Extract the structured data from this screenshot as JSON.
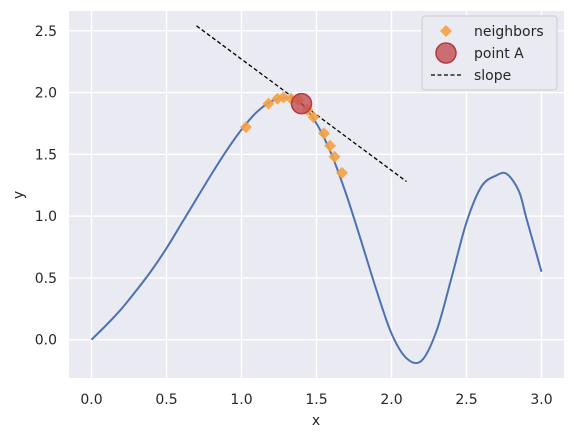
{
  "chart_data": {
    "type": "line",
    "xlabel": "x",
    "ylabel": "y",
    "xlim": [
      -0.15,
      3.15
    ],
    "ylim": [
      -0.31,
      2.66
    ],
    "xticks": [
      0.0,
      0.5,
      1.0,
      1.5,
      2.0,
      2.5,
      3.0
    ],
    "xtick_labels": [
      "0.0",
      "0.5",
      "1.0",
      "1.5",
      "2.0",
      "2.5",
      "3.0"
    ],
    "yticks": [
      0.0,
      0.5,
      1.0,
      1.5,
      2.0,
      2.5
    ],
    "ytick_labels": [
      "0.0",
      "0.5",
      "1.0",
      "1.5",
      "2.0",
      "2.5"
    ],
    "grid": true,
    "legend_position": "top-right",
    "series": [
      {
        "kind": "line",
        "color": "#4c72b0",
        "x": [
          0.0,
          0.1,
          0.2,
          0.3,
          0.4,
          0.5,
          0.6,
          0.7,
          0.8,
          0.9,
          1.0,
          1.1,
          1.2,
          1.3,
          1.35,
          1.4,
          1.5,
          1.6,
          1.7,
          1.8,
          1.9,
          2.0,
          2.1,
          2.2,
          2.3,
          2.4,
          2.5,
          2.6,
          2.7,
          2.77,
          2.85,
          2.9,
          3.0
        ],
        "y": [
          0.0,
          0.12,
          0.25,
          0.4,
          0.56,
          0.74,
          0.94,
          1.14,
          1.34,
          1.53,
          1.7,
          1.84,
          1.93,
          1.96,
          1.95,
          1.91,
          1.75,
          1.5,
          1.17,
          0.79,
          0.4,
          0.05,
          -0.15,
          -0.17,
          0.07,
          0.5,
          0.95,
          1.24,
          1.33,
          1.34,
          1.2,
          0.98,
          0.55
        ]
      },
      {
        "kind": "scatter",
        "name": "neighbors",
        "marker": "diamond",
        "color": "#f5a142",
        "x": [
          1.03,
          1.18,
          1.24,
          1.28,
          1.33,
          1.38,
          1.44,
          1.48,
          1.55,
          1.59,
          1.62,
          1.67
        ],
        "y": [
          1.72,
          1.91,
          1.95,
          1.96,
          1.95,
          1.94,
          1.86,
          1.8,
          1.67,
          1.57,
          1.48,
          1.35
        ]
      },
      {
        "kind": "scatter",
        "name": "point A",
        "marker": "circle",
        "color": "#c44e52",
        "x": [
          1.4
        ],
        "y": [
          1.91
        ]
      },
      {
        "kind": "line",
        "name": "slope",
        "style": "dashed",
        "color": "#000000",
        "x": [
          0.7,
          2.1
        ],
        "y": [
          2.54,
          1.28
        ]
      }
    ]
  }
}
